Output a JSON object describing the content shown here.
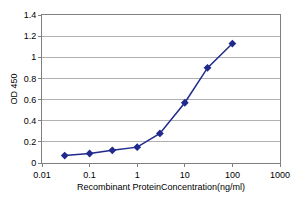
{
  "chart_data": {
    "type": "line",
    "x_label": "Recombinant ProteinConcentration(ng/ml)",
    "y_label": "OD 450",
    "x": [
      0.03,
      0.1,
      0.3,
      1,
      3,
      10,
      30,
      100
    ],
    "values": [
      0.07,
      0.09,
      0.12,
      0.15,
      0.28,
      0.57,
      0.9,
      1.13
    ],
    "color": "#1f2a8c",
    "marker": "diamond",
    "log": "x",
    "xlim": [
      0.01,
      1000
    ],
    "xticks": [
      0.01,
      0.1,
      1,
      10,
      100,
      1000
    ],
    "ylim": [
      0,
      1.4
    ],
    "yticks": [
      0,
      0.2,
      0.4,
      0.6,
      0.8,
      1,
      1.2,
      1.4
    ],
    "grid": true
  }
}
